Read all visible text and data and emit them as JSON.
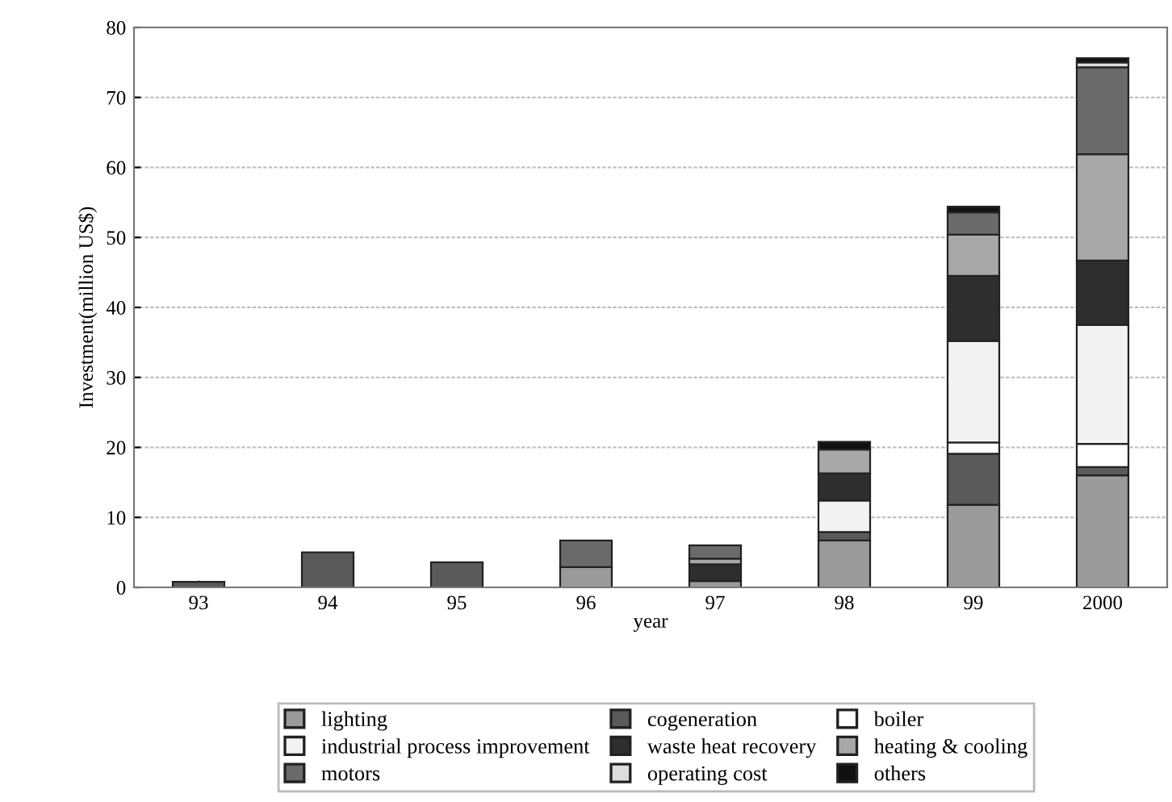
{
  "chart_data": {
    "type": "bar",
    "stacked": true,
    "xlabel": "year",
    "ylabel": "Investment(million US$)",
    "categories": [
      "93",
      "94",
      "95",
      "96",
      "97",
      "98",
      "99",
      "2000"
    ],
    "ylim": [
      0,
      80
    ],
    "yticks": [
      0,
      10,
      20,
      30,
      40,
      50,
      60,
      70,
      80
    ],
    "grid": "y",
    "legend": "bottom",
    "series": [
      {
        "name": "lighting",
        "color": "#9a9a9a",
        "values": [
          null,
          null,
          null,
          2.9,
          0.9,
          6.7,
          11.8,
          16
        ]
      },
      {
        "name": "cogeneration",
        "color": "#5a5a5a",
        "values": [
          0.8,
          5,
          3.6,
          null,
          null,
          1.2,
          7.3,
          1.2
        ]
      },
      {
        "name": "boiler",
        "color": "#ffffff",
        "values": [
          null,
          null,
          null,
          null,
          null,
          null,
          1.6,
          3.3
        ]
      },
      {
        "name": "industrial process improvement",
        "color": "#f2f2f2",
        "values": [
          null,
          null,
          null,
          null,
          null,
          4.5,
          14.5,
          17
        ]
      },
      {
        "name": "waste heat recovery",
        "color": "#2e2e2e",
        "values": [
          null,
          null,
          null,
          null,
          2.4,
          3.9,
          9.3,
          9.2
        ]
      },
      {
        "name": "heating & cooling",
        "color": "#a8a8a8",
        "values": [
          null,
          null,
          null,
          null,
          0.8,
          3.4,
          5.9,
          15.2
        ]
      },
      {
        "name": "motors",
        "color": "#6a6a6a",
        "values": [
          null,
          null,
          null,
          3.8,
          1.9,
          null,
          3.2,
          12.4
        ]
      },
      {
        "name": "operating cost",
        "color": "#dddddd",
        "values": [
          null,
          null,
          null,
          null,
          null,
          null,
          null,
          0.7
        ]
      },
      {
        "name": "others",
        "color": "#111111",
        "values": [
          null,
          null,
          null,
          null,
          null,
          1.1,
          0.8,
          0.6
        ]
      }
    ]
  }
}
